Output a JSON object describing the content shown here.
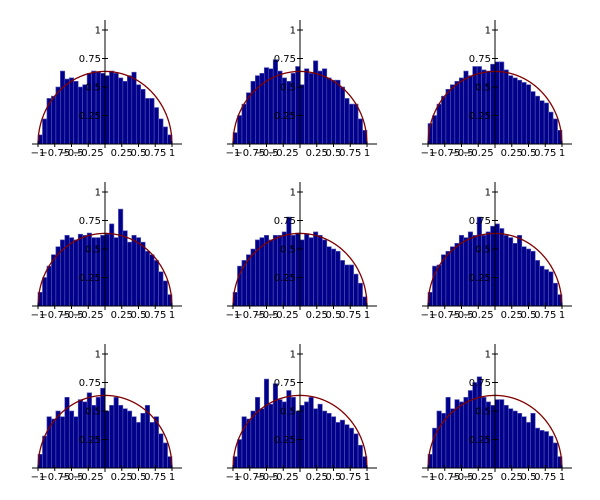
{
  "figure": {
    "rows": 3,
    "cols": 3,
    "colors": {
      "bar_fill": "#00008b",
      "bar_edge": "#5a5ab4",
      "curve": "#800000",
      "axis": "#000000"
    }
  },
  "chart_data": [
    {
      "type": "bar",
      "bins": 30,
      "xlim": [
        -1,
        1
      ],
      "ylim": [
        0,
        1
      ],
      "x_tick_labels": [
        "−1",
        "−0.75",
        "−0.5",
        "−0.25",
        "0.25",
        "0.5",
        "0.75",
        "1"
      ],
      "y_tick_labels": [
        "0.25",
        "0.5",
        "0.75",
        "1"
      ],
      "curve": "semicircle",
      "values": [
        0.08,
        0.22,
        0.4,
        0.42,
        0.5,
        0.64,
        0.57,
        0.58,
        0.55,
        0.5,
        0.52,
        0.62,
        0.64,
        0.63,
        0.62,
        0.6,
        0.64,
        0.62,
        0.58,
        0.55,
        0.6,
        0.63,
        0.52,
        0.48,
        0.4,
        0.4,
        0.32,
        0.22,
        0.15,
        0.08
      ]
    },
    {
      "type": "bar",
      "bins": 30,
      "xlim": [
        -1,
        1
      ],
      "ylim": [
        0,
        1
      ],
      "x_tick_labels": [
        "−1",
        "−0.75",
        "−0.5",
        "−0.25",
        "0.25",
        "0.5",
        "0.75",
        "1"
      ],
      "y_tick_labels": [
        "0.25",
        "0.5",
        "0.75",
        "1"
      ],
      "curve": "semicircle",
      "values": [
        0.1,
        0.25,
        0.35,
        0.45,
        0.55,
        0.6,
        0.62,
        0.67,
        0.66,
        0.74,
        0.64,
        0.58,
        0.55,
        0.62,
        0.68,
        0.52,
        0.66,
        0.62,
        0.73,
        0.64,
        0.66,
        0.58,
        0.56,
        0.56,
        0.5,
        0.4,
        0.35,
        0.35,
        0.22,
        0.12
      ]
    },
    {
      "type": "bar",
      "bins": 30,
      "xlim": [
        -1,
        1
      ],
      "ylim": [
        0,
        1
      ],
      "x_tick_labels": [
        "−1",
        "−0.75",
        "−0.5",
        "−0.25",
        "0.25",
        "0.5",
        "0.75",
        "1"
      ],
      "y_tick_labels": [
        "0.25",
        "0.5",
        "0.75",
        "1"
      ],
      "curve": "semicircle",
      "values": [
        0.18,
        0.25,
        0.35,
        0.42,
        0.48,
        0.52,
        0.55,
        0.58,
        0.64,
        0.6,
        0.68,
        0.68,
        0.65,
        0.64,
        0.7,
        0.72,
        0.72,
        0.65,
        0.6,
        0.58,
        0.56,
        0.54,
        0.52,
        0.46,
        0.42,
        0.38,
        0.36,
        0.28,
        0.22,
        0.12
      ]
    },
    {
      "type": "bar",
      "bins": 30,
      "xlim": [
        -1,
        1
      ],
      "ylim": [
        0,
        1
      ],
      "x_tick_labels": [
        "−1",
        "−0.75",
        "−0.5",
        "−0.25",
        "0.25",
        "0.5",
        "0.75",
        "1"
      ],
      "y_tick_labels": [
        "0.25",
        "0.5",
        "0.75",
        "1"
      ],
      "curve": "semicircle",
      "values": [
        0.12,
        0.25,
        0.35,
        0.45,
        0.52,
        0.58,
        0.62,
        0.6,
        0.58,
        0.63,
        0.62,
        0.64,
        0.6,
        0.6,
        0.62,
        0.63,
        0.72,
        0.6,
        0.85,
        0.66,
        0.56,
        0.62,
        0.6,
        0.56,
        0.48,
        0.45,
        0.4,
        0.3,
        0.22,
        0.1
      ]
    },
    {
      "type": "bar",
      "bins": 30,
      "xlim": [
        -1,
        1
      ],
      "ylim": [
        0,
        1
      ],
      "x_tick_labels": [
        "−1",
        "−0.75",
        "−0.5",
        "−0.25",
        "0.25",
        "0.5",
        "0.75",
        "1"
      ],
      "y_tick_labels": [
        "0.25",
        "0.5",
        "0.75",
        "1"
      ],
      "curve": "semicircle",
      "values": [
        0.12,
        0.35,
        0.4,
        0.45,
        0.5,
        0.58,
        0.6,
        0.62,
        0.58,
        0.62,
        0.62,
        0.65,
        0.78,
        0.62,
        0.64,
        0.58,
        0.63,
        0.6,
        0.65,
        0.62,
        0.58,
        0.52,
        0.5,
        0.48,
        0.4,
        0.36,
        0.36,
        0.28,
        0.2,
        0.08
      ]
    },
    {
      "type": "bar",
      "bins": 30,
      "xlim": [
        -1,
        1
      ],
      "ylim": [
        0,
        1
      ],
      "x_tick_labels": [
        "−1",
        "−0.75",
        "−0.5",
        "−0.25",
        "0.25",
        "0.5",
        "0.75",
        "1"
      ],
      "y_tick_labels": [
        "0.25",
        "0.5",
        "0.75",
        "1"
      ],
      "curve": "semicircle",
      "values": [
        0.12,
        0.35,
        0.36,
        0.45,
        0.48,
        0.52,
        0.55,
        0.62,
        0.6,
        0.65,
        0.62,
        0.78,
        0.62,
        0.65,
        0.7,
        0.72,
        0.68,
        0.62,
        0.6,
        0.55,
        0.62,
        0.52,
        0.5,
        0.48,
        0.4,
        0.35,
        0.32,
        0.3,
        0.2,
        0.1
      ]
    },
    {
      "type": "bar",
      "bins": 30,
      "xlim": [
        -1,
        1
      ],
      "ylim": [
        0,
        1
      ],
      "x_tick_labels": [
        "−1",
        "−0.75",
        "−0.5",
        "−0.25",
        "0.25",
        "0.5",
        "0.75",
        "1"
      ],
      "y_tick_labels": [
        "0.25",
        "0.5",
        "0.75",
        "1"
      ],
      "curve": "semicircle",
      "values": [
        0.12,
        0.28,
        0.45,
        0.43,
        0.5,
        0.45,
        0.62,
        0.5,
        0.45,
        0.6,
        0.58,
        0.66,
        0.55,
        0.62,
        0.7,
        0.5,
        0.55,
        0.62,
        0.55,
        0.52,
        0.5,
        0.45,
        0.4,
        0.48,
        0.55,
        0.4,
        0.45,
        0.3,
        0.22,
        0.1
      ]
    },
    {
      "type": "bar",
      "bins": 30,
      "xlim": [
        -1,
        1
      ],
      "ylim": [
        0,
        1
      ],
      "x_tick_labels": [
        "−1",
        "−0.75",
        "−0.5",
        "−0.25",
        "0.25",
        "0.5",
        "0.75",
        "1"
      ],
      "y_tick_labels": [
        "0.25",
        "0.5",
        "0.75",
        "1"
      ],
      "curve": "semicircle",
      "values": [
        0.1,
        0.25,
        0.45,
        0.43,
        0.5,
        0.62,
        0.52,
        0.78,
        0.56,
        0.74,
        0.6,
        0.58,
        0.68,
        0.62,
        0.5,
        0.55,
        0.58,
        0.62,
        0.52,
        0.56,
        0.5,
        0.48,
        0.45,
        0.4,
        0.42,
        0.38,
        0.35,
        0.3,
        0.2,
        0.1
      ]
    },
    {
      "type": "bar",
      "bins": 30,
      "xlim": [
        -1,
        1
      ],
      "ylim": [
        0,
        1
      ],
      "x_tick_labels": [
        "−1",
        "−0.75",
        "−0.5",
        "−0.25",
        "0.25",
        "0.5",
        "0.75",
        "1"
      ],
      "y_tick_labels": [
        "0.25",
        "0.5",
        "0.75",
        "1"
      ],
      "curve": "semicircle",
      "values": [
        0.12,
        0.35,
        0.5,
        0.48,
        0.62,
        0.52,
        0.6,
        0.58,
        0.62,
        0.68,
        0.75,
        0.8,
        0.62,
        0.58,
        0.55,
        0.6,
        0.6,
        0.55,
        0.52,
        0.5,
        0.48,
        0.45,
        0.4,
        0.48,
        0.35,
        0.33,
        0.32,
        0.28,
        0.22,
        0.1
      ]
    }
  ]
}
